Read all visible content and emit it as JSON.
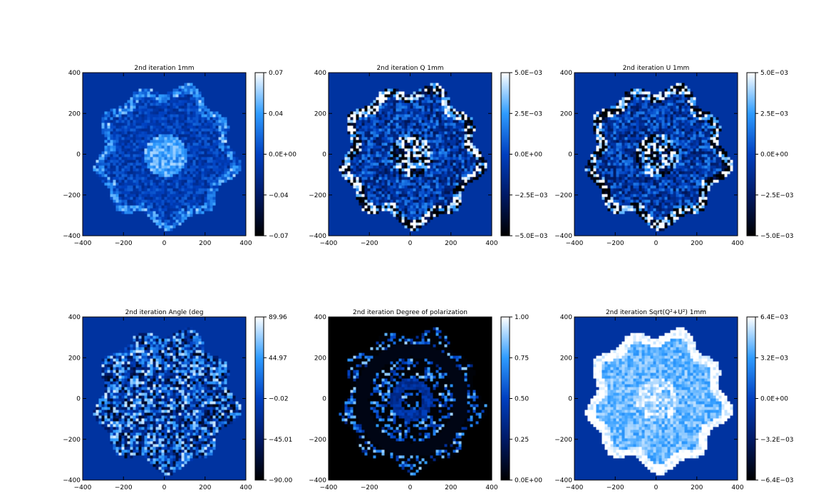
{
  "figure": {
    "colors": {
      "background": "#0033a0",
      "outside": "#0033a0"
    }
  },
  "chart_data": [
    {
      "type": "heatmap",
      "title": "2nd iteration 1mm",
      "x_ticks": [
        "−400",
        "−200",
        "0",
        "200",
        "400"
      ],
      "y_ticks": [
        "−400",
        "−200",
        "0",
        "200",
        "400"
      ],
      "xlim": [
        -400,
        400
      ],
      "ylim": [
        -400,
        400
      ],
      "colorbar": {
        "ticks": [
          "0.07",
          "0.04",
          "0.0E+00",
          "−0.04",
          "−0.07"
        ],
        "range": [
          -0.07,
          0.07
        ]
      },
      "style": "intensity",
      "background": "#0033a0"
    },
    {
      "type": "heatmap",
      "title": "2nd iteration Q 1mm",
      "x_ticks": [
        "−400",
        "−200",
        "0",
        "200",
        "400"
      ],
      "y_ticks": [
        "−400",
        "−200",
        "0",
        "200",
        "400"
      ],
      "xlim": [
        -400,
        400
      ],
      "ylim": [
        -400,
        400
      ],
      "colorbar": {
        "ticks": [
          "5.0E−03",
          "2.5E−03",
          "0.0E+00",
          "−2.5E−03",
          "−5.0E−03"
        ],
        "range": [
          -0.005,
          0.005
        ]
      },
      "style": "stokes",
      "background": "#0033a0"
    },
    {
      "type": "heatmap",
      "title": "2nd iteration U 1mm",
      "x_ticks": [
        "−400",
        "−200",
        "0",
        "200",
        "400"
      ],
      "y_ticks": [
        "−400",
        "−200",
        "0",
        "200",
        "400"
      ],
      "xlim": [
        -400,
        400
      ],
      "ylim": [
        -400,
        400
      ],
      "colorbar": {
        "ticks": [
          "5.0E−03",
          "2.5E−03",
          "0.0E+00",
          "−2.5E−03",
          "−5.0E−03"
        ],
        "range": [
          -0.005,
          0.005
        ]
      },
      "style": "stokes",
      "background": "#0033a0"
    },
    {
      "type": "heatmap",
      "title": "2nd iteration Angle (deg",
      "x_ticks": [
        "−400",
        "−200",
        "0",
        "200",
        "400"
      ],
      "y_ticks": [
        "−400",
        "−200",
        "0",
        "200",
        "400"
      ],
      "xlim": [
        -400,
        400
      ],
      "ylim": [
        -400,
        400
      ],
      "colorbar": {
        "ticks": [
          "89.96",
          "44.97",
          "−0.02",
          "−45.01",
          "−90.00"
        ],
        "range": [
          -90.0,
          89.96
        ]
      },
      "style": "angle",
      "background": "#0033a0"
    },
    {
      "type": "heatmap",
      "title": "2nd iteration Degree of polarization",
      "x_ticks": [
        "−400",
        "−200",
        "0",
        "200",
        "400"
      ],
      "y_ticks": [
        "−400",
        "−200",
        "0",
        "200",
        "400"
      ],
      "xlim": [
        -400,
        400
      ],
      "ylim": [
        -400,
        400
      ],
      "colorbar": {
        "ticks": [
          "1.00",
          "0.75",
          "0.50",
          "0.25",
          "0.0E+00"
        ],
        "range": [
          0,
          1
        ]
      },
      "style": "degree",
      "background": "#000000"
    },
    {
      "type": "heatmap",
      "title": "2nd iteration Sqrt(Q²+U²) 1mm",
      "x_ticks": [
        "−400",
        "−200",
        "0",
        "200",
        "400"
      ],
      "y_ticks": [
        "−400",
        "−200",
        "0",
        "200",
        "400"
      ],
      "xlim": [
        -400,
        400
      ],
      "ylim": [
        -400,
        400
      ],
      "colorbar": {
        "ticks": [
          "6.4E−03",
          "3.2E−03",
          "0.0E+00",
          "−3.2E−03",
          "−6.4E−03"
        ],
        "range": [
          -0.0064,
          0.0064
        ]
      },
      "style": "amplitude",
      "background": "#0033a0"
    }
  ]
}
